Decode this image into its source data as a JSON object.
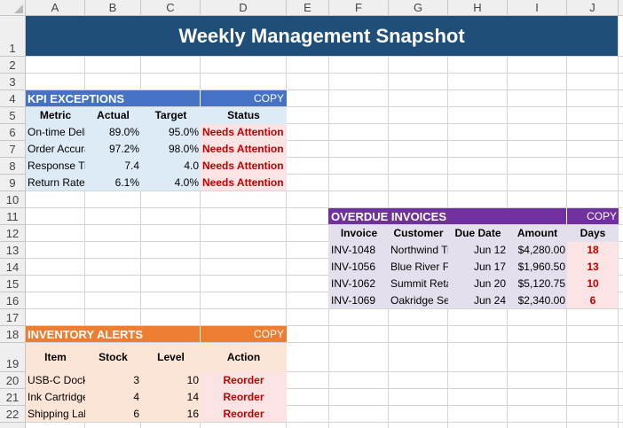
{
  "columns": [
    "A",
    "B",
    "C",
    "D",
    "E",
    "F",
    "G",
    "H",
    "I",
    "J"
  ],
  "rows": [
    "1",
    "2",
    "3",
    "4",
    "5",
    "6",
    "7",
    "8",
    "9",
    "10",
    "11",
    "12",
    "13",
    "14",
    "15",
    "16",
    "17",
    "18",
    "19",
    "20",
    "21",
    "22"
  ],
  "title": "Weekly Management Snapshot",
  "kpi": {
    "header": "KPI EXCEPTIONS",
    "copy": "COPY",
    "cols": [
      "Metric",
      "Actual",
      "Target",
      "Status"
    ],
    "rows": [
      {
        "metric": "On-time Delivery",
        "actual": "89.0%",
        "target": "95.0%",
        "status": "Needs Attention"
      },
      {
        "metric": "Order Accuracy",
        "actual": "97.2%",
        "target": "98.0%",
        "status": "Needs Attention"
      },
      {
        "metric": "Response Time",
        "actual": "7.4",
        "target": "4.0",
        "status": "Needs Attention"
      },
      {
        "metric": "Return Rate",
        "actual": "6.1%",
        "target": "4.0%",
        "status": "Needs Attention"
      }
    ]
  },
  "overdue": {
    "header": "OVERDUE INVOICES",
    "copy": "COPY",
    "cols": [
      "Invoice",
      "Customer",
      "Due Date",
      "Amount",
      "Days"
    ],
    "rows": [
      {
        "invoice": "INV-1048",
        "customer": "Northwind Traders",
        "due": "Jun 12",
        "amount": "$4,280.00",
        "days": "18"
      },
      {
        "invoice": "INV-1056",
        "customer": "Blue River Foods",
        "due": "Jun 17",
        "amount": "$1,960.50",
        "days": "13"
      },
      {
        "invoice": "INV-1062",
        "customer": "Summit Retail",
        "due": "Jun 20",
        "amount": "$5,120.75",
        "days": "10"
      },
      {
        "invoice": "INV-1069",
        "customer": "Oakridge Services",
        "due": "Jun 24",
        "amount": "$2,340.00",
        "days": "6"
      }
    ]
  },
  "inventory": {
    "header": "INVENTORY ALERTS",
    "copy": "COPY",
    "cols": [
      "Item",
      "Stock",
      "Level",
      "Action"
    ],
    "rows": [
      {
        "item": "USB-C Docking Station",
        "stock": "3",
        "level": "10",
        "action": "Reorder"
      },
      {
        "item": "Ink Cartridge",
        "stock": "4",
        "level": "14",
        "action": "Reorder"
      },
      {
        "item": "Shipping Labels",
        "stock": "6",
        "level": "16",
        "action": "Reorder"
      }
    ]
  },
  "colors": {
    "title_bg": "#1f4e79",
    "kpi_header": "#4472c4",
    "kpi_body": "#ddebf7",
    "overdue_header": "#7030a0",
    "overdue_body": "#e4dfec",
    "inventory_header": "#ed7d31",
    "inventory_body": "#fce4d6",
    "alert_bg": "#fce4e4",
    "alert_text": "#c00000"
  }
}
